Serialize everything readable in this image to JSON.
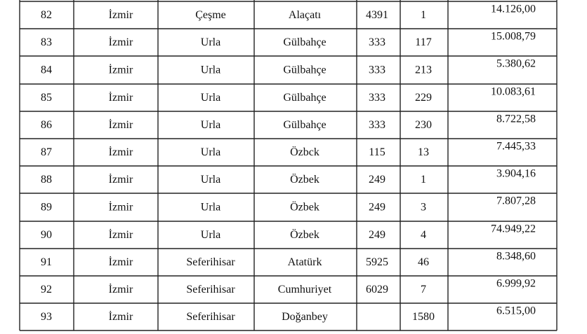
{
  "table": {
    "rows": [
      [
        "82",
        "İzmir",
        "Çeşme",
        "Alaçatı",
        "4391",
        "1",
        "14.126,00"
      ],
      [
        "83",
        "İzmir",
        "Urla",
        "Gülbahçe",
        "333",
        "117",
        "15.008,79"
      ],
      [
        "84",
        "İzmir",
        "Urla",
        "Gülbahçe",
        "333",
        "213",
        "5.380,62"
      ],
      [
        "85",
        "İzmir",
        "Urla",
        "Gülbahçe",
        "333",
        "229",
        "10.083,61"
      ],
      [
        "86",
        "İzmir",
        "Urla",
        "Gülbahçe",
        "333",
        "230",
        "8.722,58"
      ],
      [
        "87",
        "İzmir",
        "Urla",
        "Özbck",
        "115",
        "13",
        "7.445,33"
      ],
      [
        "88",
        "İzmir",
        "Urla",
        "Özbek",
        "249",
        "1",
        "3.904,16"
      ],
      [
        "89",
        "İzmir",
        "Urla",
        "Özbek",
        "249",
        "3",
        "7.807,28"
      ],
      [
        "90",
        "İzmir",
        "Urla",
        "Özbek",
        "249",
        "4",
        "74.949,22"
      ],
      [
        "91",
        "İzmir",
        "Seferihisar",
        "Atatürk",
        "5925",
        "46",
        "8.348,60"
      ],
      [
        "92",
        "İzmir",
        "Seferihisar",
        "Cumhuriyet",
        "6029",
        "7",
        "6.999,92"
      ],
      [
        "93",
        "İzmir",
        "Seferihisar",
        "Doğanbey",
        null,
        "1580",
        "6.515,00"
      ]
    ]
  }
}
